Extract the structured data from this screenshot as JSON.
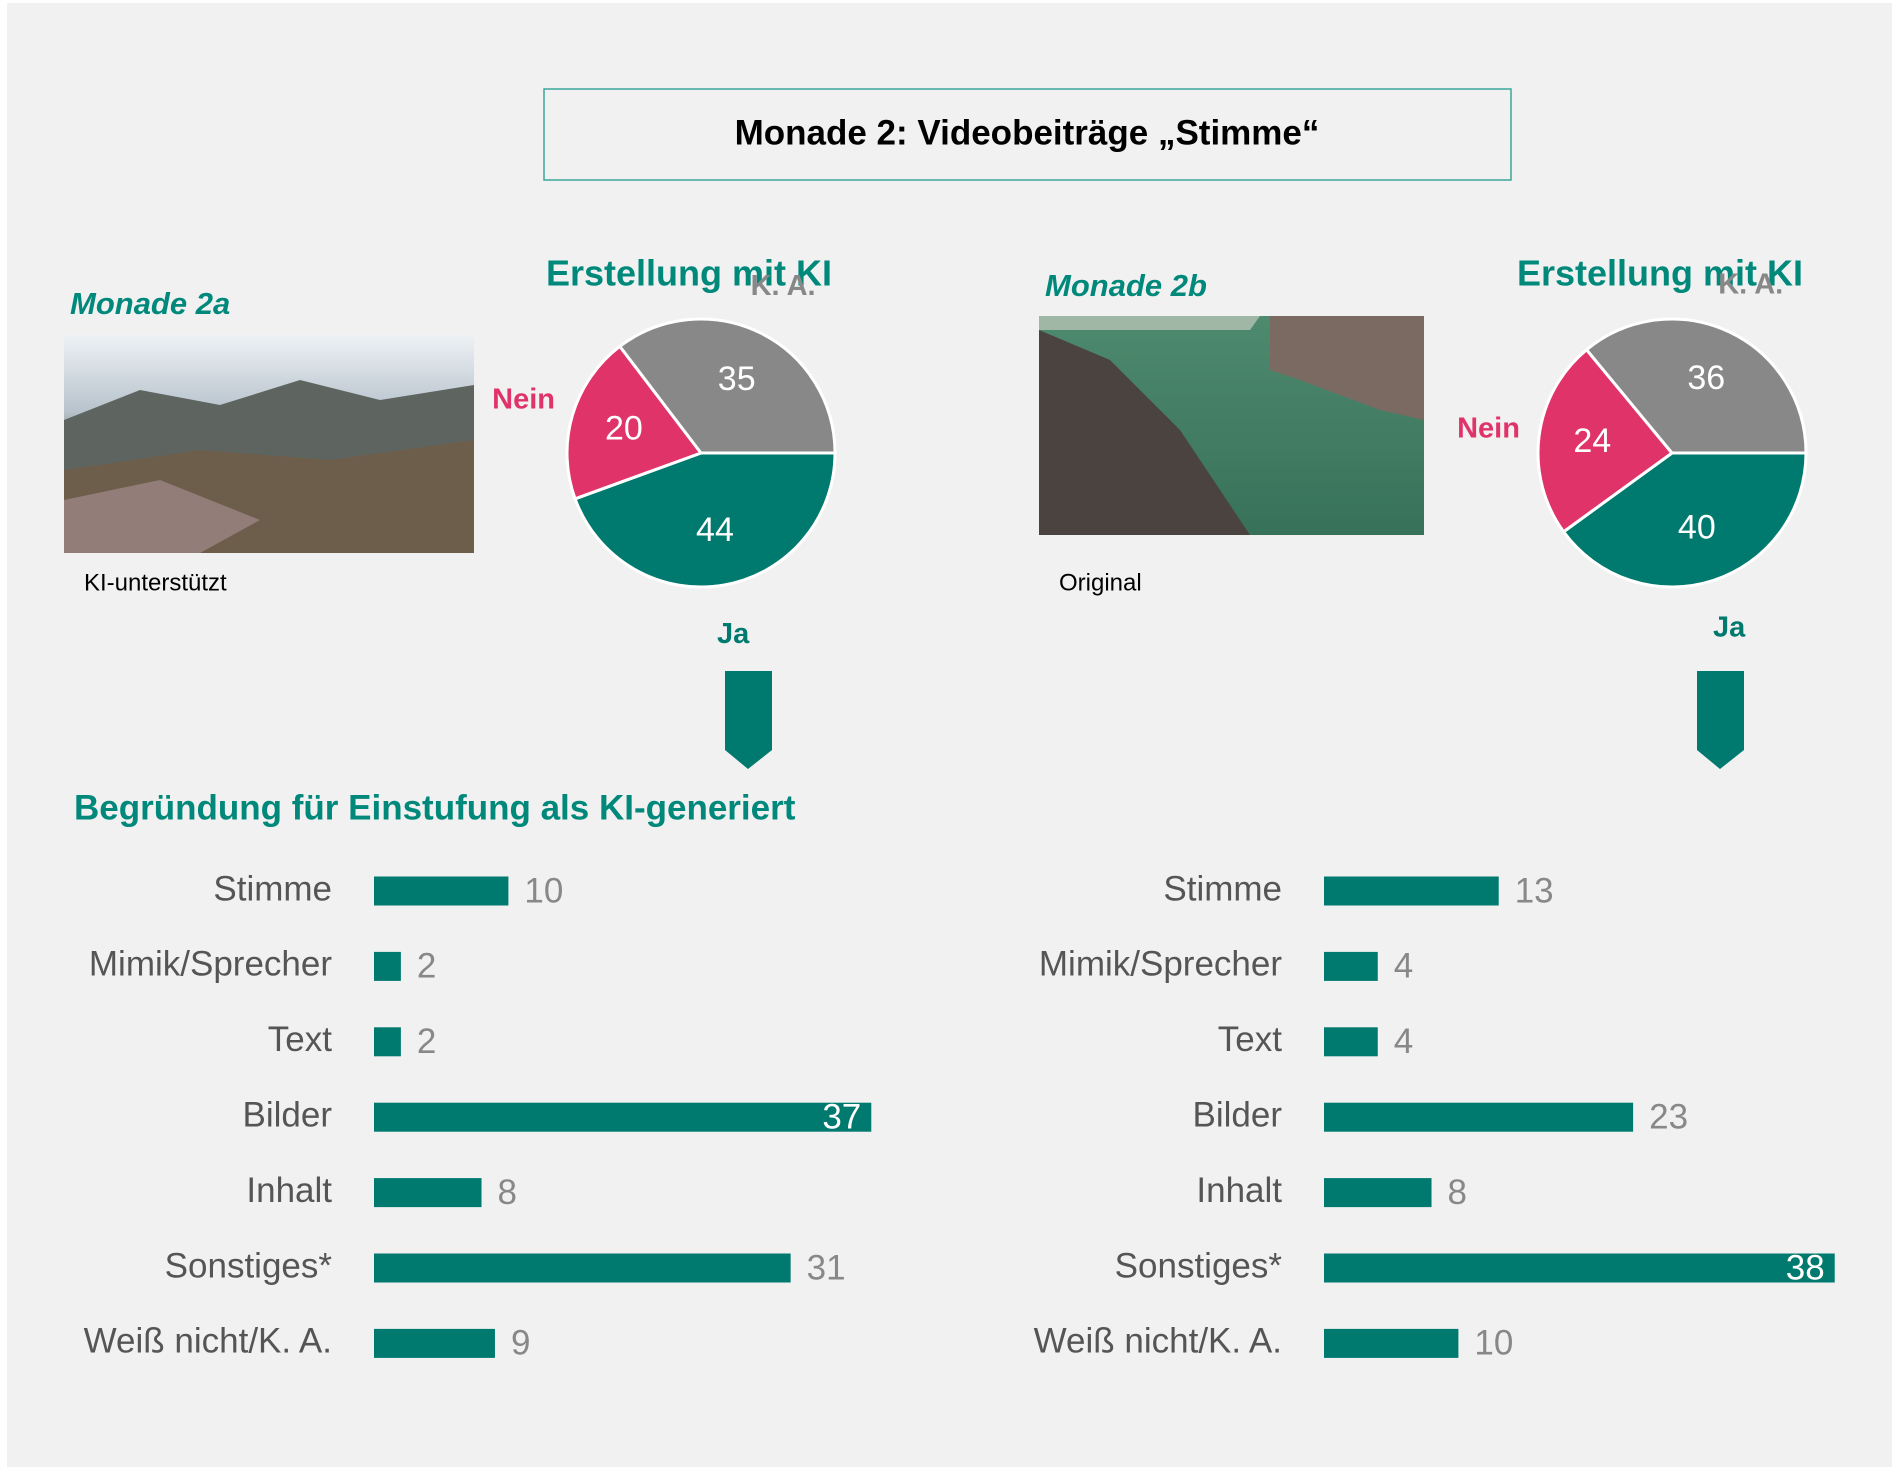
{
  "header": {
    "title": "Monade 2: Videobeiträge „Stimme“"
  },
  "panels": [
    {
      "label": "Monade 2a",
      "caption": "KI-unterstützt"
    },
    {
      "label": "Monade 2b",
      "caption": "Original"
    }
  ],
  "chart_data": [
    {
      "type": "pie",
      "title": "Erstellung mit KI",
      "categories": [
        "Ja",
        "Nein",
        "K. A."
      ],
      "values": [
        44,
        20,
        35
      ],
      "colors": [
        "#00796e",
        "#e0336a",
        "#888888"
      ]
    },
    {
      "type": "pie",
      "title": "Erstellung mit KI",
      "categories": [
        "Ja",
        "Nein",
        "K. A."
      ],
      "values": [
        40,
        24,
        36
      ],
      "colors": [
        "#00796e",
        "#e0336a",
        "#888888"
      ]
    },
    {
      "type": "bar",
      "orientation": "horizontal",
      "title": "Begründung für Einstufung als KI-generiert",
      "categories": [
        "Stimme",
        "Mimik/Sprecher",
        "Text",
        "Bilder",
        "Inhalt",
        "Sonstiges*",
        "Weiß nicht/K. A."
      ],
      "values": [
        10,
        2,
        2,
        37,
        8,
        31,
        9
      ],
      "color": "#00796e"
    },
    {
      "type": "bar",
      "orientation": "horizontal",
      "categories": [
        "Stimme",
        "Mimik/Sprecher",
        "Text",
        "Bilder",
        "Inhalt",
        "Sonstiges*",
        "Weiß nicht/K. A."
      ],
      "values": [
        13,
        4,
        4,
        23,
        8,
        38,
        10
      ],
      "color": "#00796e"
    }
  ]
}
